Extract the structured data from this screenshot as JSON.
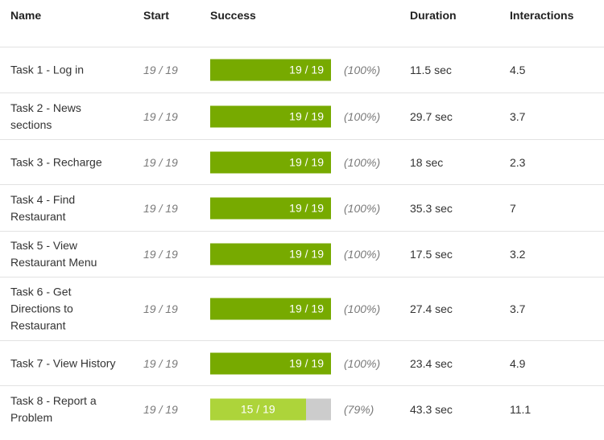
{
  "header": {
    "name": "Name",
    "start": "Start",
    "success": "Success",
    "duration": "Duration",
    "interactions": "Interactions"
  },
  "colors": {
    "bar_full": "#77aa00",
    "bar_partial": "#add43a",
    "bar_track": "#cccccc"
  },
  "rows": [
    {
      "name": "Task 1 - Log in",
      "start": "19 / 19",
      "success_label": "19 / 19",
      "success_fraction": 1.0,
      "percent": "(100%)",
      "duration": "11.5 sec",
      "interactions": "4.5"
    },
    {
      "name": "Task 2 - News sections",
      "start": "19 / 19",
      "success_label": "19 / 19",
      "success_fraction": 1.0,
      "percent": "(100%)",
      "duration": "29.7 sec",
      "interactions": "3.7"
    },
    {
      "name": "Task 3 - Recharge",
      "start": "19 / 19",
      "success_label": "19 / 19",
      "success_fraction": 1.0,
      "percent": "(100%)",
      "duration": "18 sec",
      "interactions": "2.3"
    },
    {
      "name": "Task 4 - Find Restaurant",
      "start": "19 / 19",
      "success_label": "19 / 19",
      "success_fraction": 1.0,
      "percent": "(100%)",
      "duration": "35.3 sec",
      "interactions": "7"
    },
    {
      "name": "Task 5 - View Restaurant Menu",
      "start": "19 / 19",
      "success_label": "19 / 19",
      "success_fraction": 1.0,
      "percent": "(100%)",
      "duration": "17.5 sec",
      "interactions": "3.2"
    },
    {
      "name": "Task 6 - Get Directions to Restaurant",
      "start": "19 / 19",
      "success_label": "19 / 19",
      "success_fraction": 1.0,
      "percent": "(100%)",
      "duration": "27.4 sec",
      "interactions": "3.7"
    },
    {
      "name": "Task 7 - View History",
      "start": "19 / 19",
      "success_label": "19 / 19",
      "success_fraction": 1.0,
      "percent": "(100%)",
      "duration": "23.4 sec",
      "interactions": "4.9"
    },
    {
      "name": "Task 8 - Report a Problem",
      "start": "19 / 19",
      "success_label": "15 / 19",
      "success_fraction": 0.79,
      "percent": "(79%)",
      "duration": "43.3 sec",
      "interactions": "11.1"
    }
  ]
}
